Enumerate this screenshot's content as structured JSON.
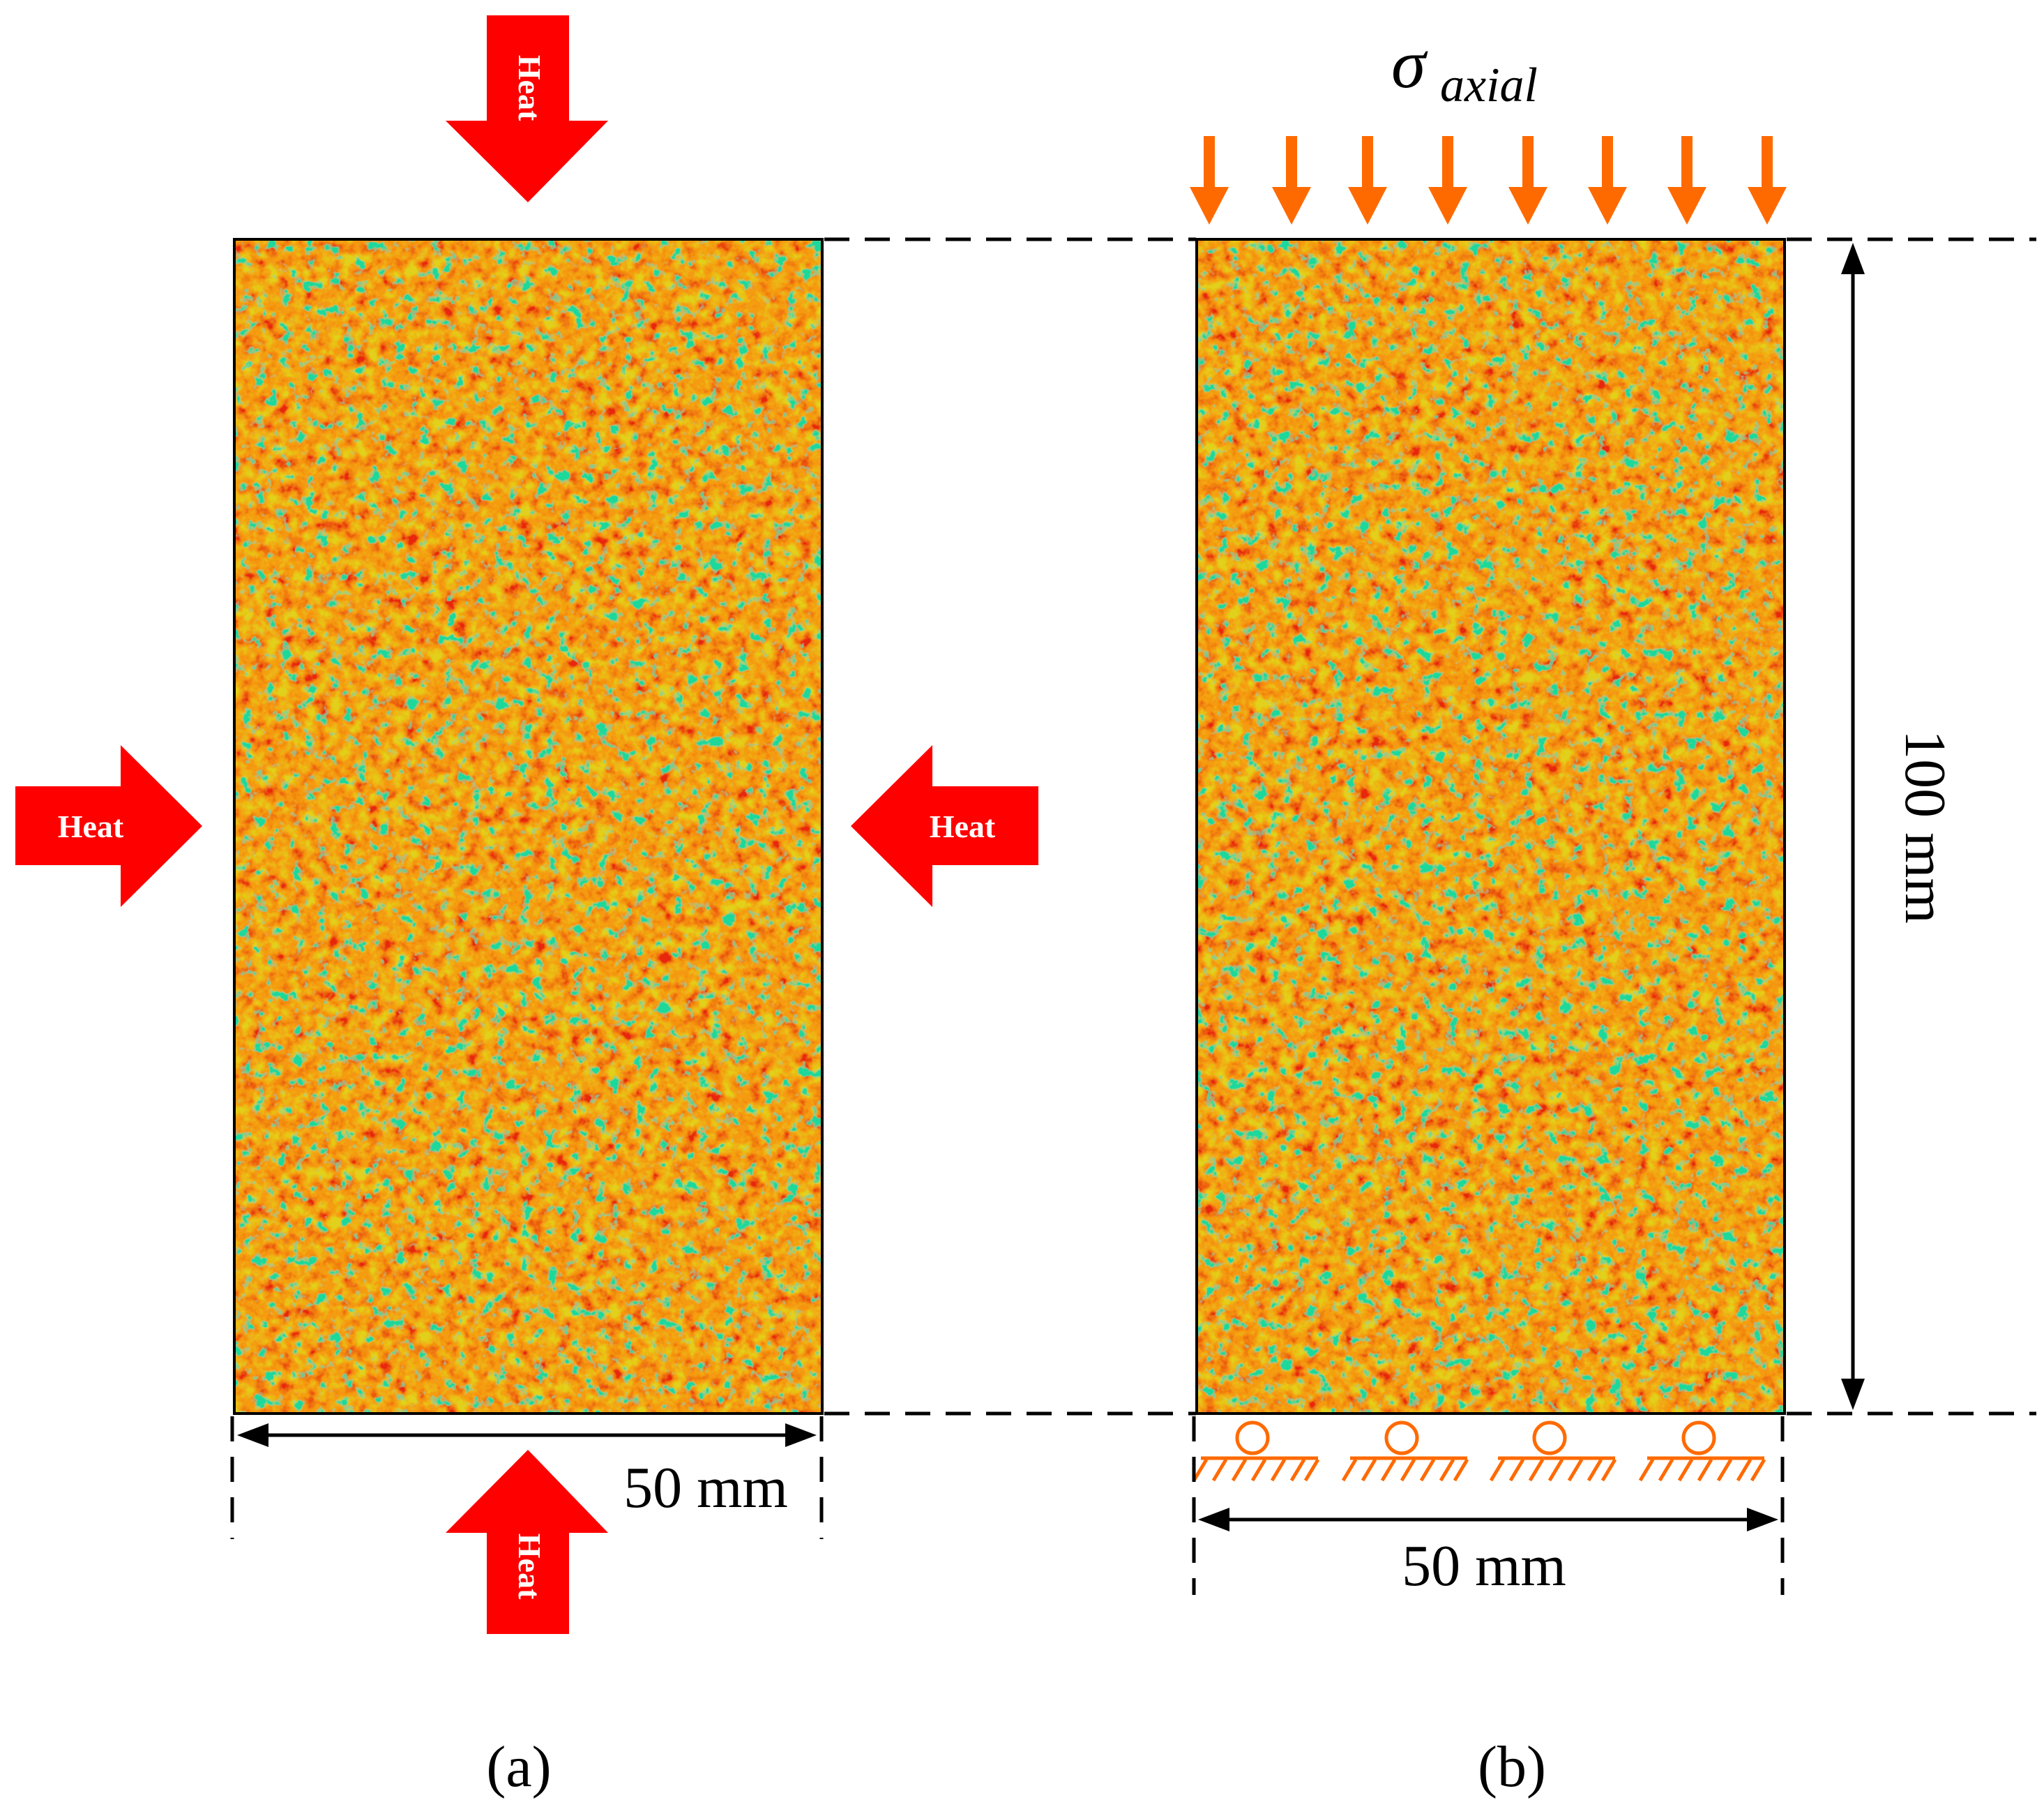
{
  "panel_a": {
    "caption": "(a)",
    "width_label": "50 mm",
    "heat_label": "Heat"
  },
  "panel_b": {
    "caption": "(b)",
    "width_label": "50 mm",
    "height_label": "100 mm",
    "load_symbol": "σ",
    "load_subscript": "axial"
  },
  "colors": {
    "heat_arrow": "#ff0000",
    "load_arrow": "#ff6a00",
    "support": "#ff6a00",
    "texture_base": "#f59a12",
    "texture_red": "#e8260f",
    "texture_yellow": "#e2d11a",
    "texture_green": "#1fd89b"
  }
}
